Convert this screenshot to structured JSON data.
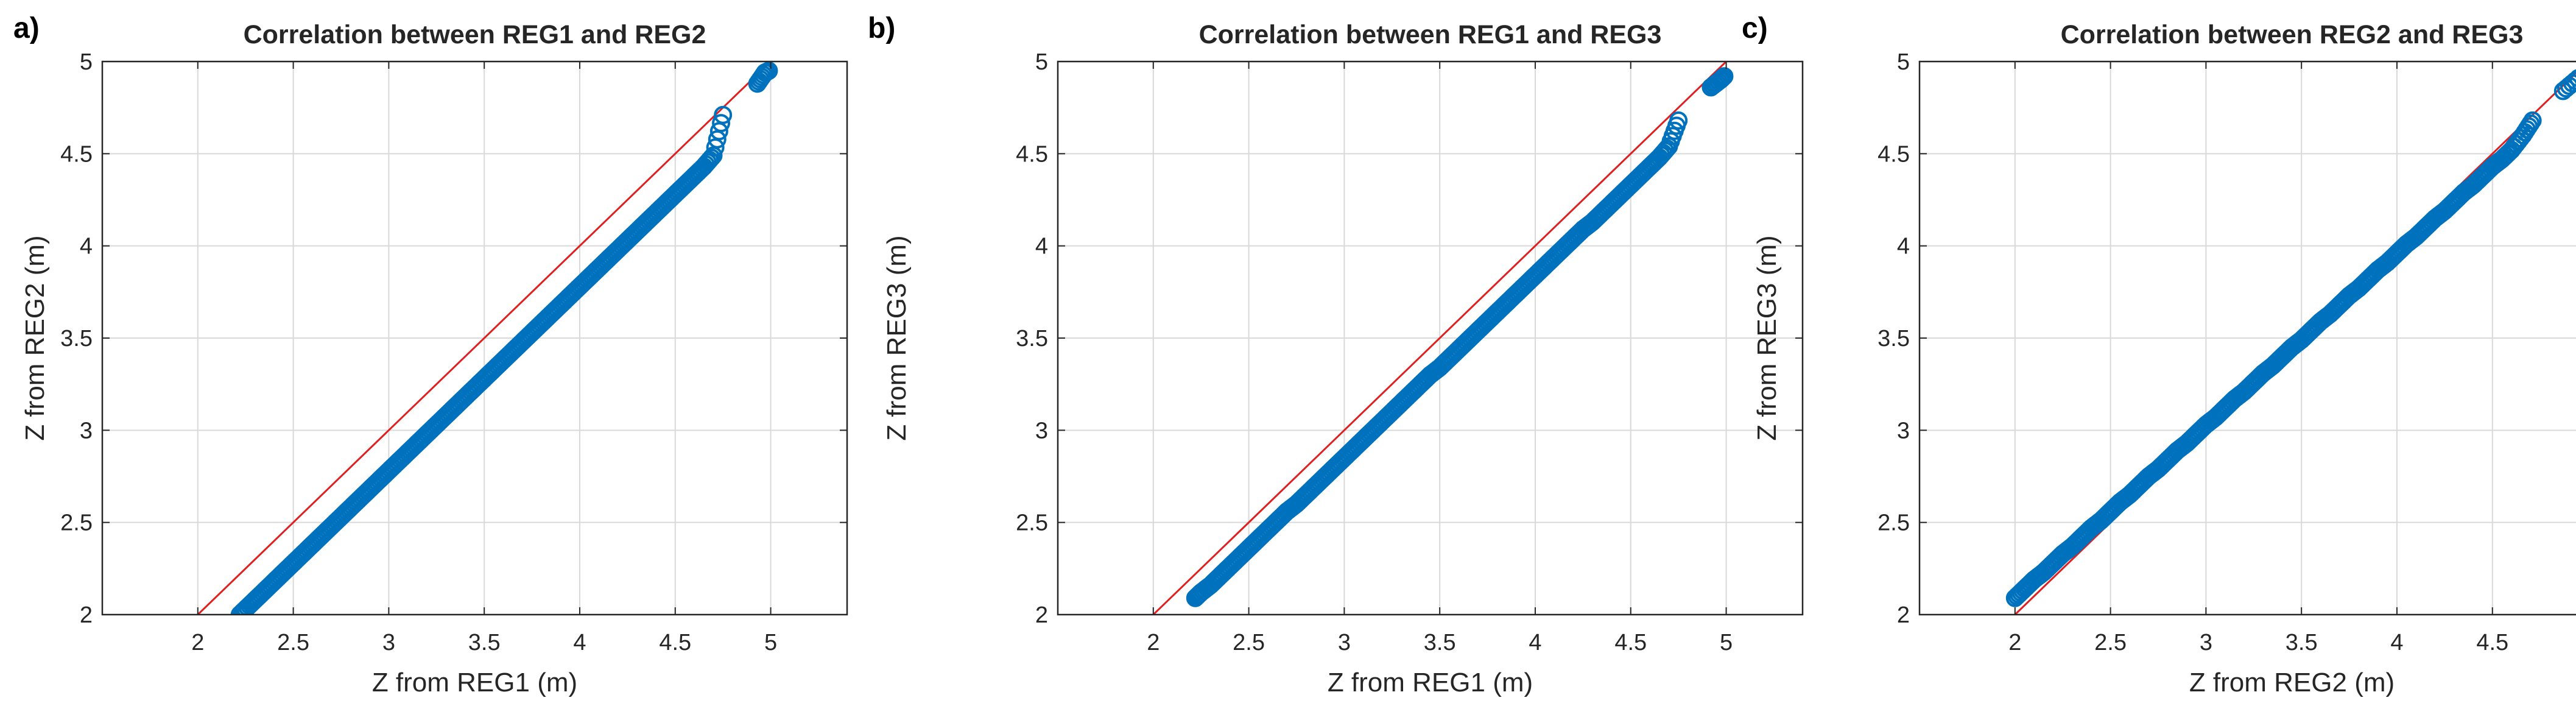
{
  "figure": {
    "colors": {
      "marker": "#0072BD",
      "identity_line": "#E02020",
      "grid": "#D9D9D9",
      "axes": "#262626",
      "text": "#262626"
    }
  },
  "chart_data": [
    {
      "type": "scatter",
      "panel_label": "a)",
      "title": "Correlation between REG1 and REG2",
      "xlabel": "Z from REG1 (m)",
      "ylabel": "Z from REG2 (m)",
      "xlim": [
        1.5,
        5.4
      ],
      "ylim": [
        2,
        5
      ],
      "xticks": [
        2,
        2.5,
        3,
        3.5,
        4,
        4.5,
        5
      ],
      "yticks": [
        2,
        2.5,
        3,
        3.5,
        4,
        4.5,
        5
      ],
      "xtick_labels": [
        "2",
        "2.5",
        "3",
        "3.5",
        "4",
        "4.5",
        "5"
      ],
      "ytick_labels": [
        "2",
        "2.5",
        "3",
        "3.5",
        "4",
        "4.5",
        "5"
      ],
      "grid": true,
      "reference_line": {
        "x": [
          2,
          5
        ],
        "y": [
          2,
          5
        ],
        "label": "1:1 line"
      },
      "series": [
        {
          "name": "points",
          "marker": "circle",
          "x": [
            2.22,
            2.25,
            2.3,
            2.35,
            2.4,
            2.45,
            2.5,
            2.55,
            2.6,
            2.65,
            2.7,
            2.75,
            2.8,
            2.85,
            2.9,
            2.95,
            3.0,
            3.05,
            3.1,
            3.15,
            3.2,
            3.25,
            3.3,
            3.35,
            3.4,
            3.45,
            3.5,
            3.55,
            3.6,
            3.65,
            3.7,
            3.75,
            3.8,
            3.85,
            3.9,
            3.95,
            4.0,
            4.05,
            4.1,
            4.15,
            4.2,
            4.25,
            4.3,
            4.35,
            4.4,
            4.45,
            4.5,
            4.55,
            4.6,
            4.65,
            4.7,
            4.75,
            4.93,
            4.97,
            4.99
          ],
          "y": [
            2.0,
            2.03,
            2.08,
            2.13,
            2.18,
            2.23,
            2.28,
            2.33,
            2.38,
            2.43,
            2.48,
            2.53,
            2.58,
            2.63,
            2.68,
            2.73,
            2.78,
            2.83,
            2.88,
            2.93,
            2.98,
            3.03,
            3.08,
            3.13,
            3.18,
            3.23,
            3.28,
            3.33,
            3.38,
            3.43,
            3.48,
            3.53,
            3.58,
            3.63,
            3.68,
            3.73,
            3.78,
            3.83,
            3.88,
            3.93,
            3.98,
            4.03,
            4.08,
            4.13,
            4.18,
            4.23,
            4.28,
            4.33,
            4.38,
            4.43,
            4.49,
            4.71,
            4.88,
            4.94,
            4.95
          ]
        }
      ]
    },
    {
      "type": "scatter",
      "panel_label": "b)",
      "title": "Correlation between REG1 and REG3",
      "xlabel": "Z from REG1 (m)",
      "ylabel": "Z from REG3 (m)",
      "xlim": [
        1.5,
        5.4
      ],
      "ylim": [
        2,
        5
      ],
      "xticks": [
        2,
        2.5,
        3,
        3.5,
        4,
        4.5,
        5
      ],
      "yticks": [
        2,
        2.5,
        3,
        3.5,
        4,
        4.5,
        5
      ],
      "xtick_labels": [
        "2",
        "2.5",
        "3",
        "3.5",
        "4",
        "4.5",
        "5"
      ],
      "ytick_labels": [
        "2",
        "2.5",
        "3",
        "3.5",
        "4",
        "4.5",
        "5"
      ],
      "grid": true,
      "reference_line": {
        "x": [
          2,
          5
        ],
        "y": [
          2,
          5
        ],
        "label": "1:1 line"
      },
      "series": [
        {
          "name": "points",
          "marker": "circle",
          "x": [
            2.22,
            2.25,
            2.3,
            2.35,
            2.4,
            2.45,
            2.5,
            2.55,
            2.6,
            2.65,
            2.7,
            2.75,
            2.8,
            2.85,
            2.9,
            2.95,
            3.0,
            3.05,
            3.1,
            3.15,
            3.2,
            3.25,
            3.3,
            3.35,
            3.4,
            3.45,
            3.5,
            3.55,
            3.6,
            3.65,
            3.7,
            3.75,
            3.8,
            3.85,
            3.9,
            3.95,
            4.0,
            4.05,
            4.1,
            4.15,
            4.2,
            4.25,
            4.3,
            4.35,
            4.4,
            4.45,
            4.5,
            4.55,
            4.6,
            4.65,
            4.7,
            4.75,
            4.92,
            4.97,
            4.99
          ],
          "y": [
            2.09,
            2.12,
            2.16,
            2.21,
            2.26,
            2.31,
            2.36,
            2.41,
            2.46,
            2.51,
            2.56,
            2.6,
            2.65,
            2.7,
            2.75,
            2.8,
            2.85,
            2.9,
            2.95,
            3.0,
            3.05,
            3.1,
            3.15,
            3.2,
            3.25,
            3.3,
            3.34,
            3.39,
            3.44,
            3.49,
            3.54,
            3.59,
            3.64,
            3.69,
            3.74,
            3.79,
            3.84,
            3.89,
            3.94,
            3.99,
            4.04,
            4.09,
            4.13,
            4.18,
            4.23,
            4.28,
            4.33,
            4.38,
            4.43,
            4.48,
            4.54,
            4.68,
            4.86,
            4.9,
            4.92
          ]
        }
      ]
    },
    {
      "type": "scatter",
      "panel_label": "c)",
      "title": "Correlation between REG2 and REG3",
      "xlabel": "Z from REG2 (m)",
      "ylabel": "Z from REG3 (m)",
      "xlim": [
        1.5,
        5.4
      ],
      "ylim": [
        2,
        5
      ],
      "xticks": [
        2,
        2.5,
        3,
        3.5,
        4,
        4.5,
        5
      ],
      "yticks": [
        2,
        2.5,
        3,
        3.5,
        4,
        4.5,
        5
      ],
      "xtick_labels": [
        "2",
        "2.5",
        "3",
        "3.5",
        "4",
        "4.5",
        "5"
      ],
      "ytick_labels": [
        "2",
        "2.5",
        "3",
        "3.5",
        "4",
        "4.5",
        "5"
      ],
      "grid": true,
      "reference_line": {
        "x": [
          2,
          5
        ],
        "y": [
          2,
          5
        ],
        "label": "1:1 line"
      },
      "series": [
        {
          "name": "points",
          "marker": "circle",
          "x": [
            2.0,
            2.05,
            2.1,
            2.15,
            2.2,
            2.25,
            2.3,
            2.35,
            2.4,
            2.45,
            2.5,
            2.55,
            2.6,
            2.65,
            2.7,
            2.75,
            2.8,
            2.85,
            2.9,
            2.95,
            3.0,
            3.05,
            3.1,
            3.15,
            3.2,
            3.25,
            3.3,
            3.35,
            3.4,
            3.45,
            3.5,
            3.55,
            3.6,
            3.65,
            3.7,
            3.75,
            3.8,
            3.85,
            3.9,
            3.95,
            4.0,
            4.05,
            4.1,
            4.15,
            4.2,
            4.25,
            4.3,
            4.35,
            4.4,
            4.45,
            4.5,
            4.55,
            4.6,
            4.66,
            4.71,
            4.87,
            4.95
          ],
          "y": [
            2.09,
            2.14,
            2.19,
            2.23,
            2.28,
            2.33,
            2.37,
            2.42,
            2.47,
            2.51,
            2.56,
            2.61,
            2.65,
            2.7,
            2.75,
            2.79,
            2.84,
            2.89,
            2.93,
            2.98,
            3.03,
            3.07,
            3.12,
            3.17,
            3.21,
            3.26,
            3.31,
            3.35,
            3.4,
            3.45,
            3.49,
            3.54,
            3.59,
            3.63,
            3.68,
            3.73,
            3.77,
            3.82,
            3.87,
            3.91,
            3.96,
            4.01,
            4.05,
            4.1,
            4.15,
            4.19,
            4.24,
            4.29,
            4.33,
            4.38,
            4.43,
            4.47,
            4.52,
            4.6,
            4.68,
            4.84,
            4.91
          ]
        }
      ]
    }
  ]
}
